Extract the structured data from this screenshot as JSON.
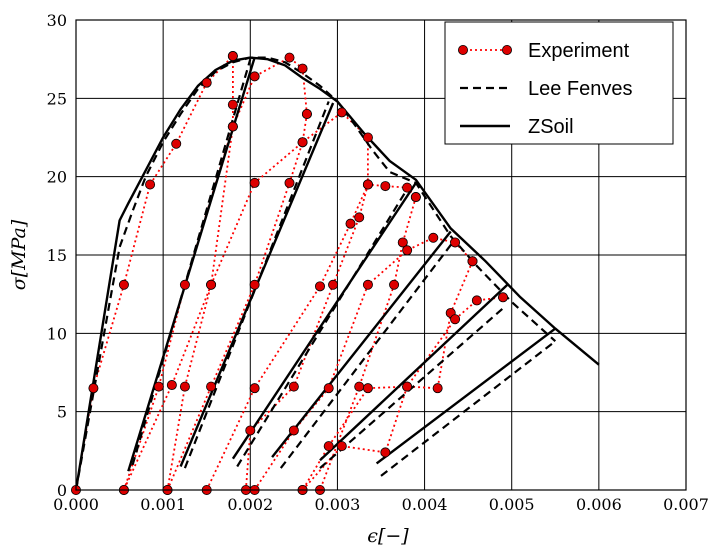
{
  "chart_data": {
    "type": "line",
    "title": "",
    "xlabel": "ϵ[−]",
    "ylabel": "σ[MPa]",
    "xlim": [
      0,
      0.007
    ],
    "ylim": [
      0,
      30
    ],
    "grid": true,
    "legend_position": "top-right",
    "x_tick_labels": [
      "0.000",
      "0.001",
      "0.002",
      "0.003",
      "0.004",
      "0.005",
      "0.006",
      "0.007"
    ],
    "y_tick_labels": [
      "0",
      "5",
      "10",
      "15",
      "20",
      "25",
      "30"
    ],
    "x_ticks": [
      0,
      0.001,
      0.002,
      0.003,
      0.004,
      0.005,
      0.006,
      0.007
    ],
    "y_ticks": [
      0,
      5,
      10,
      15,
      20,
      25,
      30
    ],
    "series": [
      {
        "name": "Experiment",
        "style": "dotted-markers",
        "color": "#ff0000",
        "marker_color": "#dd0000",
        "segments": [
          [
            [
              0,
              0
            ],
            [
              0.0002,
              6.5
            ],
            [
              0.00055,
              13.1
            ],
            [
              0.00085,
              19.5
            ],
            [
              0.00115,
              22.1
            ],
            [
              0.0015,
              26
            ],
            [
              0.0018,
              27.7
            ]
          ],
          [
            [
              0.0018,
              27.7
            ],
            [
              0.0018,
              24.6
            ],
            [
              0.0018,
              23.2
            ],
            [
              0.00155,
              13.1
            ],
            [
              0.0011,
              6.7
            ],
            [
              0.00055,
              0
            ]
          ],
          [
            [
              0.00055,
              0
            ],
            [
              0.00095,
              6.6
            ],
            [
              0.00125,
              13.1
            ],
            [
              0.0018,
              23.2
            ],
            [
              0.00205,
              26.4
            ],
            [
              0.00245,
              27.6
            ],
            [
              0.0026,
              26.9
            ],
            [
              0.00265,
              24
            ]
          ],
          [
            [
              0.00265,
              24
            ],
            [
              0.0026,
              22.2
            ],
            [
              0.00245,
              19.6
            ],
            [
              0.00205,
              13.1
            ],
            [
              0.00155,
              6.6
            ],
            [
              0.00105,
              0
            ]
          ],
          [
            [
              0.00105,
              0
            ],
            [
              0.00125,
              6.6
            ],
            [
              0.00155,
              13.1
            ],
            [
              0.00205,
              19.6
            ],
            [
              0.0026,
              22.2
            ],
            [
              0.00305,
              24.1
            ],
            [
              0.00335,
              22.5
            ],
            [
              0.00335,
              19.5
            ]
          ],
          [
            [
              0.00335,
              19.5
            ],
            [
              0.00325,
              17.4
            ],
            [
              0.00295,
              13.1
            ],
            [
              0.0025,
              6.6
            ],
            [
              0.002,
              3.8
            ],
            [
              0.00195,
              0
            ]
          ],
          [
            [
              0.0015,
              0
            ],
            [
              0.00205,
              6.5
            ],
            [
              0.0028,
              13
            ],
            [
              0.00315,
              17
            ],
            [
              0.00335,
              19.5
            ],
            [
              0.00355,
              19.4
            ],
            [
              0.0038,
              19.3
            ],
            [
              0.0039,
              18.7
            ]
          ],
          [
            [
              0.0039,
              18.7
            ],
            [
              0.00375,
              15.8
            ],
            [
              0.00365,
              13.1
            ],
            [
              0.00325,
              6.6
            ],
            [
              0.0028,
              0
            ]
          ],
          [
            [
              0.00205,
              0
            ],
            [
              0.0025,
              3.8
            ],
            [
              0.0029,
              6.5
            ],
            [
              0.00335,
              13.1
            ],
            [
              0.0038,
              15.3
            ],
            [
              0.0041,
              16.1
            ],
            [
              0.00435,
              15.8
            ],
            [
              0.00455,
              14.6
            ]
          ],
          [
            [
              0.00455,
              14.6
            ],
            [
              0.0043,
              11.3
            ],
            [
              0.00415,
              6.5
            ],
            [
              0.0038,
              6.6
            ],
            [
              0.00335,
              6.5
            ],
            [
              0.0029,
              2.8
            ],
            [
              0.0026,
              0
            ]
          ],
          [
            [
              0.0026,
              0
            ],
            [
              0.00305,
              2.8
            ],
            [
              0.00355,
              2.4
            ],
            [
              0.0038,
              6.6
            ],
            [
              0.00435,
              10.9
            ],
            [
              0.0046,
              12.1
            ],
            [
              0.0049,
              12.3
            ]
          ]
        ]
      },
      {
        "name": "Lee Fenves",
        "style": "dashed",
        "color": "#000000",
        "segments": [
          [
            [
              0,
              0
            ],
            [
              0.0005,
              15.5
            ],
            [
              0.00065,
              17.8
            ],
            [
              0.0008,
              20
            ],
            [
              0.001,
              22.2
            ],
            [
              0.0012,
              24
            ],
            [
              0.0014,
              25.6
            ],
            [
              0.0016,
              26.7
            ],
            [
              0.0018,
              27.3
            ],
            [
              0.002,
              27.6
            ],
            [
              0.0022,
              27.6
            ],
            [
              0.0024,
              27.3
            ],
            [
              0.0026,
              26.6
            ],
            [
              0.0028,
              25.8
            ],
            [
              0.003,
              24.8
            ],
            [
              0.0032,
              23.3
            ],
            [
              0.0034,
              21.7
            ],
            [
              0.0036,
              20.3
            ],
            [
              0.0039,
              19.6
            ],
            [
              0.0043,
              16.2
            ],
            [
              0.0046,
              14.3
            ],
            [
              0.005,
              12
            ],
            [
              0.0055,
              9.5
            ]
          ],
          [
            [
              0.00065,
              1.6
            ],
            [
              0.002,
              27.5
            ]
          ],
          [
            [
              0.00125,
              1.4
            ],
            [
              0.0029,
              24.8
            ]
          ],
          [
            [
              0.00185,
              1.5
            ],
            [
              0.0038,
              19.2
            ]
          ],
          [
            [
              0.00235,
              1.4
            ],
            [
              0.00435,
              16
            ]
          ],
          [
            [
              0.0028,
              1.4
            ],
            [
              0.0049,
              11.6
            ]
          ],
          [
            [
              0.0035,
              0.9
            ],
            [
              0.0055,
              9.5
            ]
          ]
        ]
      },
      {
        "name": "ZSoil",
        "style": "solid",
        "color": "#000000",
        "segments": [
          [
            [
              0,
              0
            ],
            [
              0.0005,
              17.2
            ],
            [
              0.0006,
              18.3
            ],
            [
              0.0008,
              20.4
            ],
            [
              0.001,
              22.5
            ],
            [
              0.0012,
              24.3
            ],
            [
              0.0014,
              25.8
            ],
            [
              0.0016,
              26.8
            ],
            [
              0.0018,
              27.4
            ],
            [
              0.002,
              27.6
            ],
            [
              0.0022,
              27.5
            ],
            [
              0.0024,
              27.1
            ],
            [
              0.0026,
              26.3
            ],
            [
              0.0028,
              25.6
            ],
            [
              0.003,
              24.8
            ],
            [
              0.0033,
              22.8
            ],
            [
              0.0036,
              21
            ],
            [
              0.0039,
              19.8
            ],
            [
              0.0043,
              16.7
            ],
            [
              0.0047,
              14.6
            ],
            [
              0.0051,
              12.3
            ],
            [
              0.0055,
              10.3
            ],
            [
              0.006,
              8
            ]
          ],
          [
            [
              0.0006,
              1.2
            ],
            [
              0.00205,
              27.6
            ]
          ],
          [
            [
              0.0012,
              1.5
            ],
            [
              0.00295,
              24.7
            ]
          ],
          [
            [
              0.0018,
              2
            ],
            [
              0.0039,
              19.6
            ]
          ],
          [
            [
              0.00225,
              2.1
            ],
            [
              0.0043,
              16.5
            ]
          ],
          [
            [
              0.0028,
              1.9
            ],
            [
              0.00495,
              13.1
            ]
          ],
          [
            [
              0.00345,
              1.7
            ],
            [
              0.0055,
              10.3
            ]
          ]
        ]
      }
    ]
  }
}
